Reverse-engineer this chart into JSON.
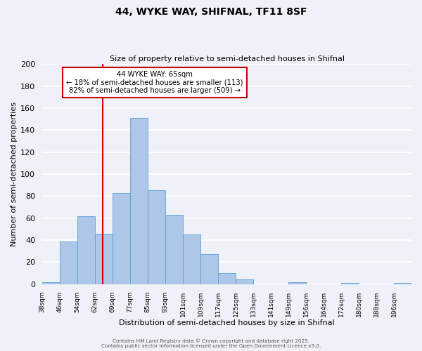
{
  "title": "44, WYKE WAY, SHIFNAL, TF11 8SF",
  "subtitle": "Size of property relative to semi-detached houses in Shifnal",
  "xlabel": "Distribution of semi-detached houses by size in Shifnal",
  "ylabel": "Number of semi-detached properties",
  "bin_labels": [
    "38sqm",
    "46sqm",
    "54sqm",
    "62sqm",
    "69sqm",
    "77sqm",
    "85sqm",
    "93sqm",
    "101sqm",
    "109sqm",
    "117sqm",
    "125sqm",
    "133sqm",
    "141sqm",
    "149sqm",
    "156sqm",
    "164sqm",
    "172sqm",
    "180sqm",
    "188sqm",
    "196sqm"
  ],
  "counts": [
    2,
    39,
    62,
    46,
    83,
    151,
    85,
    63,
    45,
    27,
    10,
    4,
    0,
    0,
    2,
    0,
    0,
    1,
    0,
    0,
    1
  ],
  "bar_color": "#aec6e8",
  "bar_edge_color": "#5a9fd4",
  "background_color": "#eef2f8",
  "grid_color": "#ffffff",
  "property_size": 65,
  "pct_smaller": 18,
  "pct_larger": 82,
  "count_smaller": 113,
  "count_larger": 509,
  "vline_color": "#cc0000",
  "annotation_box_color": "#cc0000",
  "ylim": [
    0,
    200
  ],
  "yticks": [
    0,
    20,
    40,
    60,
    80,
    100,
    120,
    140,
    160,
    180,
    200
  ],
  "footer1": "Contains HM Land Registry data © Crown copyright and database right 2025.",
  "footer2": "Contains public sector information licensed under the Open Government Licence v3.0."
}
